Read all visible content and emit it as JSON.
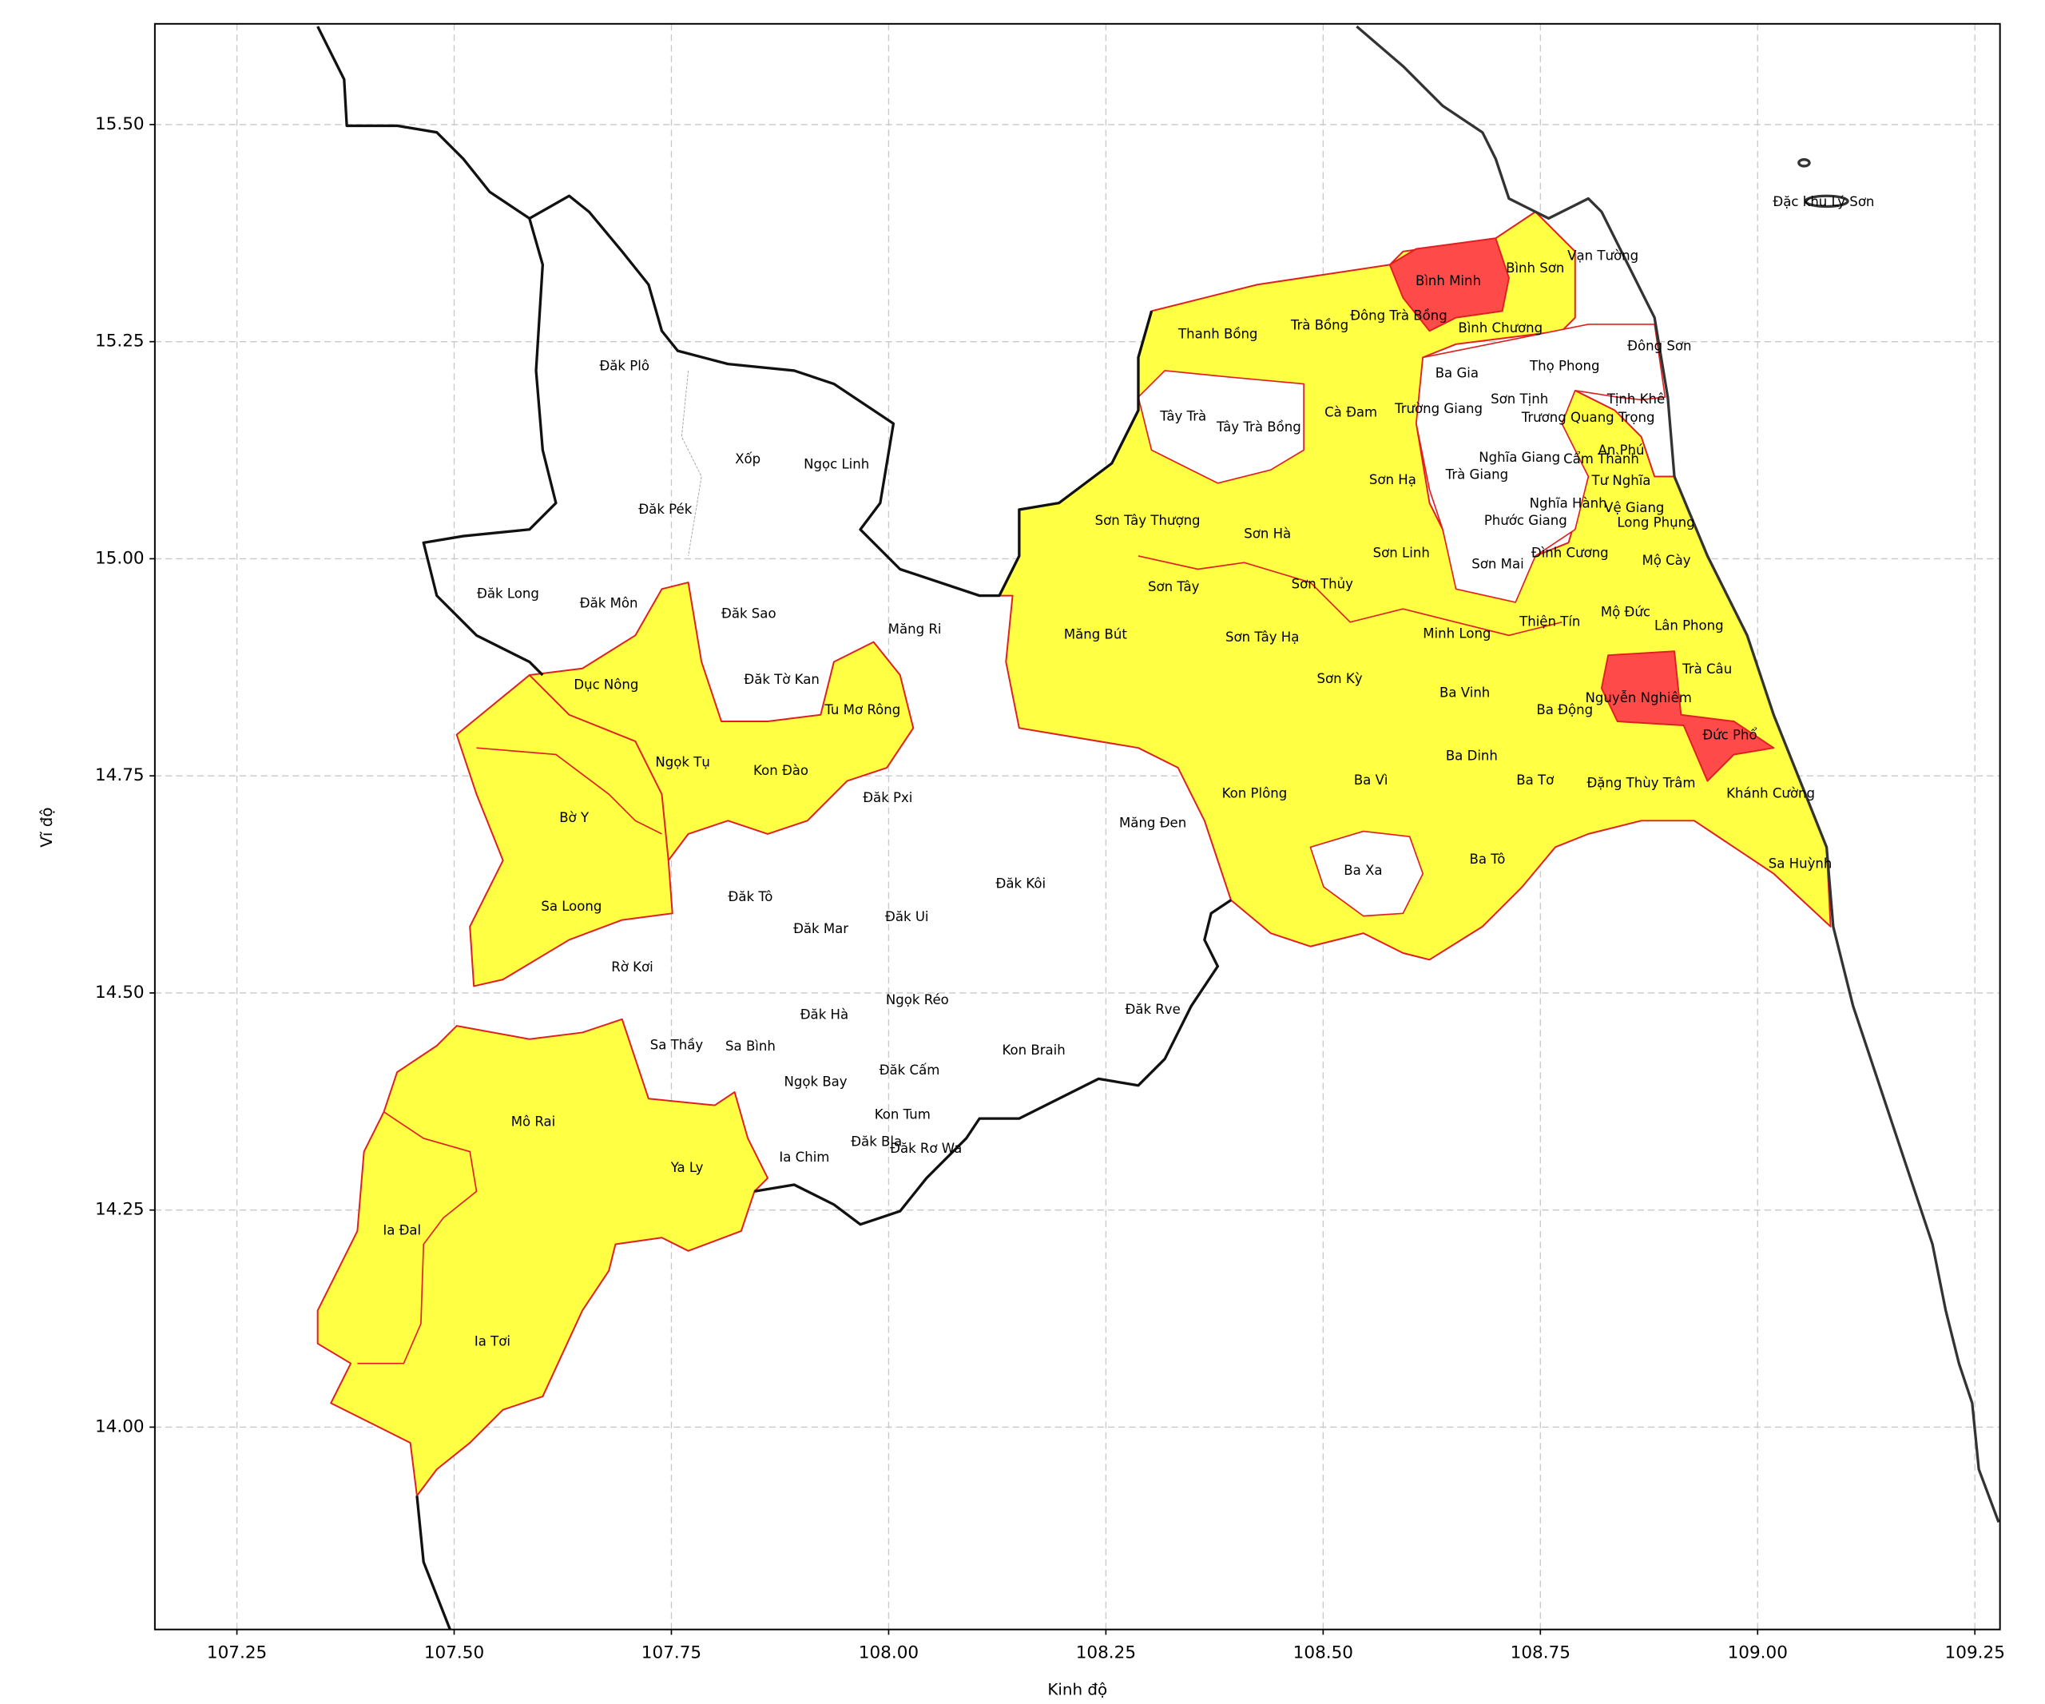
{
  "chart_data": {
    "type": "map",
    "xlabel": "Kinh độ",
    "ylabel": "Vĩ độ",
    "xlim": [
      107.1556,
      109.2789
    ],
    "ylim": [
      13.767,
      15.616
    ],
    "xticks": [
      {
        "value": 107.25,
        "label": "107.25"
      },
      {
        "value": 107.5,
        "label": "107.50"
      },
      {
        "value": 107.75,
        "label": "107.75"
      },
      {
        "value": 108.0,
        "label": "108.00"
      },
      {
        "value": 108.25,
        "label": "108.25"
      },
      {
        "value": 108.5,
        "label": "108.50"
      },
      {
        "value": 108.75,
        "label": "108.75"
      },
      {
        "value": 109.0,
        "label": "109.00"
      },
      {
        "value": 109.25,
        "label": "109.25"
      }
    ],
    "yticks": [
      {
        "value": 14.0,
        "label": "14.00"
      },
      {
        "value": 14.25,
        "label": "14.25"
      },
      {
        "value": 14.5,
        "label": "14.50"
      },
      {
        "value": 14.75,
        "label": "14.75"
      },
      {
        "value": 15.0,
        "label": "15.00"
      },
      {
        "value": 15.25,
        "label": "15.25"
      },
      {
        "value": 15.5,
        "label": "15.50"
      }
    ],
    "grid": true,
    "places": [
      {
        "name": "Đặc khu Lý Sơn",
        "lon": 109.076,
        "lat": 15.41
      },
      {
        "name": "Đăk Plô",
        "lon": 107.696,
        "lat": 15.221
      },
      {
        "name": "Xốp",
        "lon": 107.838,
        "lat": 15.114
      },
      {
        "name": "Ngọc Linh",
        "lon": 107.94,
        "lat": 15.108
      },
      {
        "name": "Đăk Pék",
        "lon": 107.743,
        "lat": 15.056
      },
      {
        "name": "Đăk Long",
        "lon": 107.562,
        "lat": 14.959
      },
      {
        "name": "Đăk Môn",
        "lon": 107.678,
        "lat": 14.948
      },
      {
        "name": "Đăk Sao",
        "lon": 107.839,
        "lat": 14.936
      },
      {
        "name": "Măng Ri",
        "lon": 108.03,
        "lat": 14.918
      },
      {
        "name": "Đăk Tờ Kan",
        "lon": 107.877,
        "lat": 14.86
      },
      {
        "name": "Dục Nông",
        "lon": 107.675,
        "lat": 14.854
      },
      {
        "name": "Tu Mơ Rông",
        "lon": 107.97,
        "lat": 14.825
      },
      {
        "name": "Ngọk Tụ",
        "lon": 107.763,
        "lat": 14.765
      },
      {
        "name": "Kon Đào",
        "lon": 107.876,
        "lat": 14.755
      },
      {
        "name": "Đăk Pxi",
        "lon": 107.999,
        "lat": 14.724
      },
      {
        "name": "Bờ Y",
        "lon": 107.638,
        "lat": 14.701
      },
      {
        "name": "Măng Đen",
        "lon": 108.304,
        "lat": 14.695
      },
      {
        "name": "Đăk Kôi",
        "lon": 108.152,
        "lat": 14.625
      },
      {
        "name": "Đăk Tô",
        "lon": 107.841,
        "lat": 14.61
      },
      {
        "name": "Sa Loong",
        "lon": 107.635,
        "lat": 14.599
      },
      {
        "name": "Đăk Ui",
        "lon": 108.021,
        "lat": 14.587
      },
      {
        "name": "Đăk Mar",
        "lon": 107.922,
        "lat": 14.573
      },
      {
        "name": "Rờ Kơi",
        "lon": 107.705,
        "lat": 14.529
      },
      {
        "name": "Ngọk Réo",
        "lon": 108.033,
        "lat": 14.491
      },
      {
        "name": "Đăk Rve",
        "lon": 108.304,
        "lat": 14.48
      },
      {
        "name": "Đăk Hà",
        "lon": 107.926,
        "lat": 14.474
      },
      {
        "name": "Sa Thầy",
        "lon": 107.756,
        "lat": 14.439
      },
      {
        "name": "Sa Bình",
        "lon": 107.841,
        "lat": 14.438
      },
      {
        "name": "Kon Braih",
        "lon": 108.167,
        "lat": 14.433
      },
      {
        "name": "Đăk Cấm",
        "lon": 108.024,
        "lat": 14.41
      },
      {
        "name": "Ngọk Bay",
        "lon": 107.916,
        "lat": 14.397
      },
      {
        "name": "Mô Rai",
        "lon": 107.591,
        "lat": 14.351
      },
      {
        "name": "Kon Tum",
        "lon": 108.016,
        "lat": 14.359
      },
      {
        "name": "Đăk Bla",
        "lon": 107.986,
        "lat": 14.328
      },
      {
        "name": "Đăk Rơ Wa",
        "lon": 108.043,
        "lat": 14.32
      },
      {
        "name": "Ia Chim",
        "lon": 107.903,
        "lat": 14.31
      },
      {
        "name": "Ya Ly",
        "lon": 107.768,
        "lat": 14.298
      },
      {
        "name": "Ia Đal",
        "lon": 107.44,
        "lat": 14.226
      },
      {
        "name": "Ia Tơi",
        "lon": 107.544,
        "lat": 14.098
      },
      {
        "name": "Thanh Bồng",
        "lon": 108.379,
        "lat": 15.258
      },
      {
        "name": "Trà Bồng",
        "lon": 108.496,
        "lat": 15.268
      },
      {
        "name": "Đông Trà Bồng",
        "lon": 108.587,
        "lat": 15.279
      },
      {
        "name": "Bình Minh",
        "lon": 108.644,
        "lat": 15.319
      },
      {
        "name": "Bình Sơn",
        "lon": 108.744,
        "lat": 15.334
      },
      {
        "name": "Vạn Tường",
        "lon": 108.822,
        "lat": 15.348
      },
      {
        "name": "Bình Chương",
        "lon": 108.704,
        "lat": 15.265
      },
      {
        "name": "Ba Gia",
        "lon": 108.654,
        "lat": 15.213
      },
      {
        "name": "Thọ Phong",
        "lon": 108.778,
        "lat": 15.221
      },
      {
        "name": "Đông Sơn",
        "lon": 108.887,
        "lat": 15.244
      },
      {
        "name": "Sơn Tịnh",
        "lon": 108.726,
        "lat": 15.183
      },
      {
        "name": "Tịnh Khê",
        "lon": 108.86,
        "lat": 15.183
      },
      {
        "name": "Tây Trà",
        "lon": 108.339,
        "lat": 15.163
      },
      {
        "name": "Tây Trà Bồng",
        "lon": 108.426,
        "lat": 15.151
      },
      {
        "name": "Cà Đam",
        "lon": 108.532,
        "lat": 15.168
      },
      {
        "name": "Trường Giang",
        "lon": 108.633,
        "lat": 15.172
      },
      {
        "name": "Trương Quang Trọng",
        "lon": 108.805,
        "lat": 15.162
      },
      {
        "name": "Nghĩa Giang",
        "lon": 108.726,
        "lat": 15.116
      },
      {
        "name": "Cẩm Thành",
        "lon": 108.82,
        "lat": 15.114
      },
      {
        "name": "An Phú",
        "lon": 108.843,
        "lat": 15.124
      },
      {
        "name": "Trà Giang",
        "lon": 108.677,
        "lat": 15.096
      },
      {
        "name": "Tư Nghĩa",
        "lon": 108.843,
        "lat": 15.089
      },
      {
        "name": "Nghĩa Hành",
        "lon": 108.782,
        "lat": 15.063
      },
      {
        "name": "Vệ Giang",
        "lon": 108.858,
        "lat": 15.058
      },
      {
        "name": "Long Phụng",
        "lon": 108.883,
        "lat": 15.041
      },
      {
        "name": "Phước Giang",
        "lon": 108.733,
        "lat": 15.043
      },
      {
        "name": "Sơn Mai",
        "lon": 108.701,
        "lat": 14.993
      },
      {
        "name": "Đình Cương",
        "lon": 108.784,
        "lat": 15.006
      },
      {
        "name": "Mộ Cày",
        "lon": 108.895,
        "lat": 14.997
      },
      {
        "name": "Thiện Tín",
        "lon": 108.761,
        "lat": 14.927
      },
      {
        "name": "Mộ Đức",
        "lon": 108.848,
        "lat": 14.938
      },
      {
        "name": "Lân Phong",
        "lon": 108.921,
        "lat": 14.922
      },
      {
        "name": "Trà Câu",
        "lon": 108.942,
        "lat": 14.872
      },
      {
        "name": "Nguyễn Nghiêm",
        "lon": 108.863,
        "lat": 14.839
      },
      {
        "name": "Đức Phổ",
        "lon": 108.968,
        "lat": 14.796
      },
      {
        "name": "Ba Động",
        "lon": 108.778,
        "lat": 14.825
      },
      {
        "name": "Ba Vinh",
        "lon": 108.663,
        "lat": 14.845
      },
      {
        "name": "Ba Dinh",
        "lon": 108.671,
        "lat": 14.772
      },
      {
        "name": "Ba Tơ",
        "lon": 108.744,
        "lat": 14.744
      },
      {
        "name": "Đặng Thùy Trâm",
        "lon": 108.866,
        "lat": 14.741
      },
      {
        "name": "Khánh Cường",
        "lon": 109.015,
        "lat": 14.729
      },
      {
        "name": "Sa Huỳnh",
        "lon": 109.049,
        "lat": 14.648
      },
      {
        "name": "Ba Tô",
        "lon": 108.689,
        "lat": 14.653
      },
      {
        "name": "Ba Xa",
        "lon": 108.546,
        "lat": 14.64
      },
      {
        "name": "Ba Vì",
        "lon": 108.555,
        "lat": 14.744
      },
      {
        "name": "Kon Plông",
        "lon": 108.421,
        "lat": 14.729
      },
      {
        "name": "Sơn Kỳ",
        "lon": 108.519,
        "lat": 14.861
      },
      {
        "name": "Minh Long",
        "lon": 108.654,
        "lat": 14.913
      },
      {
        "name": "Sơn Tây Hạ",
        "lon": 108.43,
        "lat": 14.909
      },
      {
        "name": "Măng Bút",
        "lon": 108.238,
        "lat": 14.912
      },
      {
        "name": "Sơn Tây",
        "lon": 108.328,
        "lat": 14.967
      },
      {
        "name": "Sơn Thủy",
        "lon": 108.499,
        "lat": 14.97
      },
      {
        "name": "Sơn Linh",
        "lon": 108.59,
        "lat": 15.006
      },
      {
        "name": "Sơn Hà",
        "lon": 108.436,
        "lat": 15.028
      },
      {
        "name": "Sơn Tây Thượng",
        "lon": 108.298,
        "lat": 15.043
      },
      {
        "name": "Sơn Hạ",
        "lon": 108.58,
        "lat": 15.09
      }
    ]
  }
}
